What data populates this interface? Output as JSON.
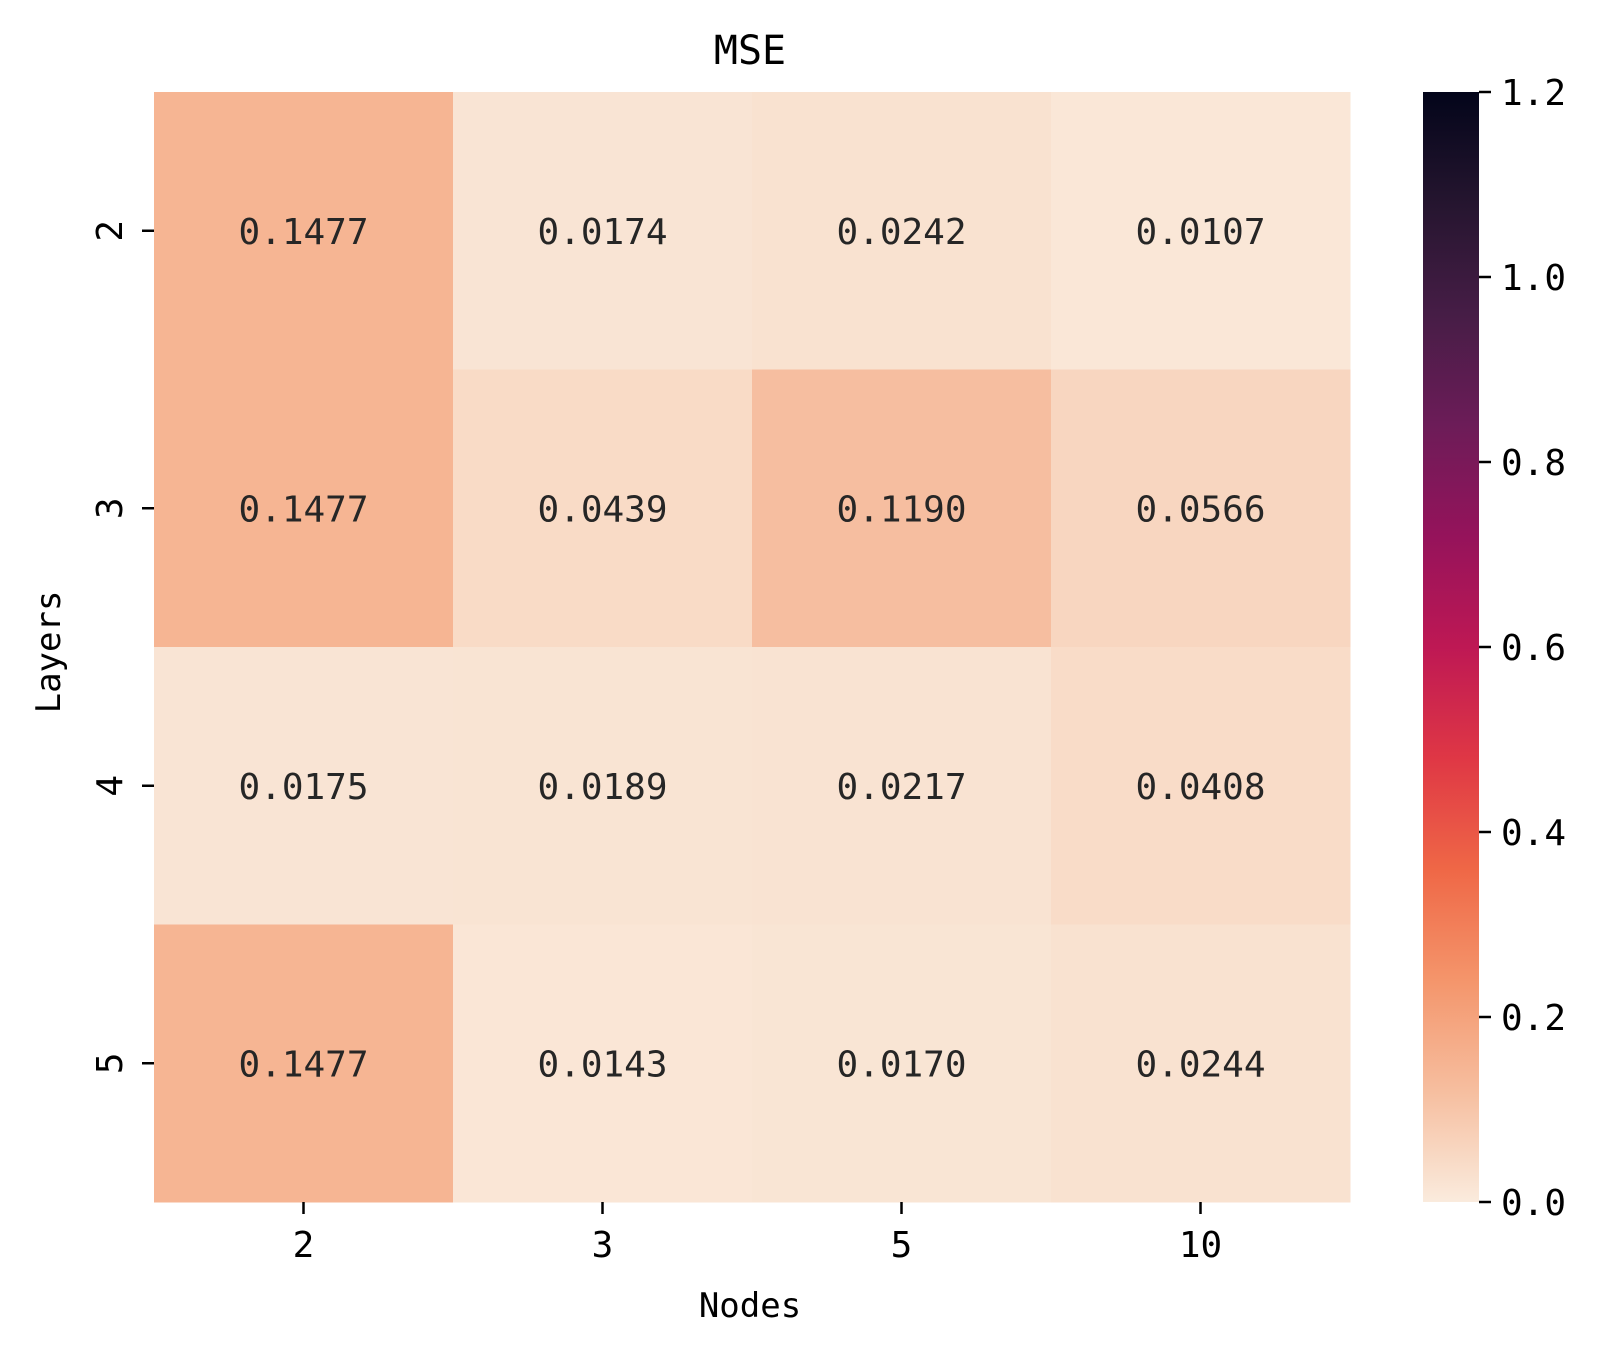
{
  "chart_data": {
    "type": "heatmap",
    "title": "MSE",
    "xlabel": "Nodes",
    "ylabel": "Layers",
    "x_categories": [
      "2",
      "3",
      "5",
      "10"
    ],
    "y_categories": [
      "2",
      "3",
      "4",
      "5"
    ],
    "values": [
      [
        0.1477,
        0.0174,
        0.0242,
        0.0107
      ],
      [
        0.1477,
        0.0439,
        0.119,
        0.0566
      ],
      [
        0.0175,
        0.0189,
        0.0217,
        0.0408
      ],
      [
        0.1477,
        0.0143,
        0.017,
        0.0244
      ]
    ],
    "cell_labels": [
      [
        "0.1477",
        "0.0174",
        "0.0242",
        "0.0107"
      ],
      [
        "0.1477",
        "0.0439",
        "0.1190",
        "0.0566"
      ],
      [
        "0.0175",
        "0.0189",
        "0.0217",
        "0.0408"
      ],
      [
        "0.1477",
        "0.0143",
        "0.0170",
        "0.0244"
      ]
    ],
    "colorbar": {
      "range": [
        0.0,
        1.2
      ],
      "ticks": [
        "0.0",
        "0.2",
        "0.4",
        "0.6",
        "0.8",
        "1.0",
        "1.2"
      ],
      "colormap": "rocket_r"
    },
    "grid": false
  },
  "colors": {
    "cell_text": "#262626",
    "axis_text": "#000000",
    "background": "#ffffff"
  }
}
